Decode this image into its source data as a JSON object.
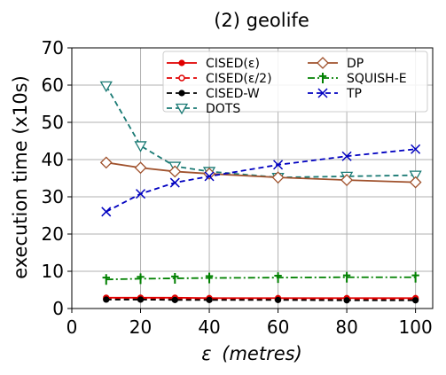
{
  "chart_data": {
    "type": "line",
    "title": "(2) geolife",
    "xlabel": "ε (metres)",
    "xlabel_symbol": "ε",
    "xlabel_rest": "(metres)",
    "ylabel": "execution time (x10s)",
    "xlim": [
      0,
      105
    ],
    "ylim": [
      0,
      70
    ],
    "xticks": [
      0,
      20,
      40,
      60,
      80,
      100
    ],
    "yticks": [
      0,
      10,
      20,
      30,
      40,
      50,
      60,
      70
    ],
    "grid": true,
    "legend_position": "top-right",
    "x": [
      10,
      20,
      30,
      40,
      60,
      80,
      100
    ],
    "series": [
      {
        "name": "CISED(ε)",
        "color": "#e00000",
        "dash": "solid",
        "marker": "filled-circle",
        "values": [
          2.9,
          2.9,
          2.9,
          2.8,
          2.8,
          2.8,
          2.8
        ]
      },
      {
        "name": "CISED(ε/2)",
        "color": "#e00000",
        "dash": "dashed",
        "marker": "open-circle",
        "values": [
          2.6,
          2.6,
          2.6,
          2.5,
          2.5,
          2.5,
          2.5
        ]
      },
      {
        "name": "CISED-W",
        "color": "#000000",
        "dash": "dashed",
        "marker": "filled-circle",
        "values": [
          2.4,
          2.4,
          2.3,
          2.3,
          2.3,
          2.2,
          2.2
        ]
      },
      {
        "name": "DOTS",
        "color": "#1a7a74",
        "dash": "dashed",
        "marker": "triangle-down",
        "values": [
          59.8,
          43.7,
          38.2,
          36.8,
          35.2,
          35.5,
          35.8
        ]
      },
      {
        "name": "DP",
        "color": "#a0522d",
        "dash": "solid",
        "marker": "diamond",
        "values": [
          39.2,
          37.8,
          36.8,
          36.2,
          35.2,
          34.5,
          33.9
        ]
      },
      {
        "name": "SQUISH-E",
        "color": "#008000",
        "dash": "dashdot",
        "marker": "dagger",
        "values": [
          7.8,
          8.0,
          8.1,
          8.2,
          8.3,
          8.4,
          8.4
        ]
      },
      {
        "name": "TP",
        "color": "#0000c0",
        "dash": "dashed",
        "marker": "x",
        "values": [
          26.0,
          30.8,
          33.8,
          35.5,
          38.6,
          40.9,
          42.8
        ]
      }
    ]
  }
}
